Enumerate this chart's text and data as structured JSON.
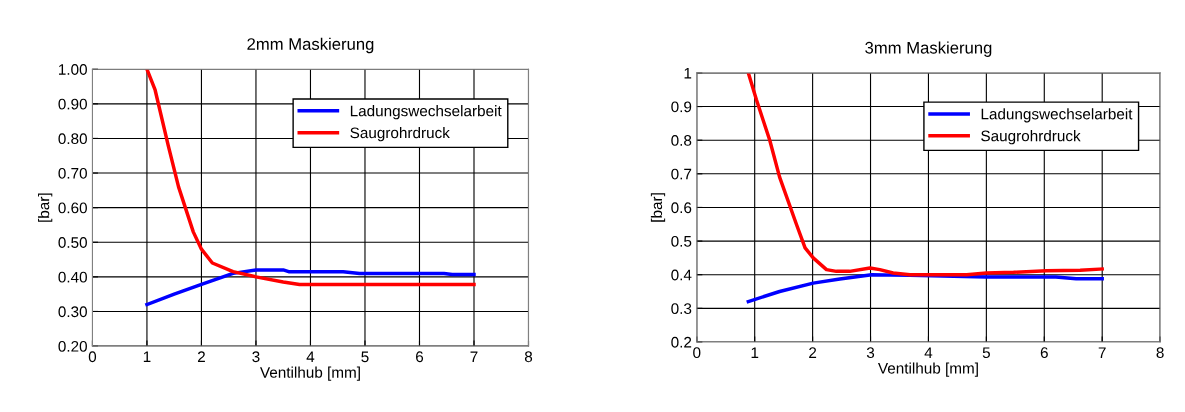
{
  "chart_data": [
    {
      "type": "line",
      "title": "2mm Maskierung",
      "xlabel": "Ventilhub [mm]",
      "ylabel": "[bar]",
      "xlim": [
        0,
        8
      ],
      "xticks": [
        0,
        1,
        2,
        3,
        4,
        5,
        6,
        7,
        8
      ],
      "ylim": [
        0.2,
        1.0
      ],
      "yticks": [
        {
          "value": 0.2,
          "label": "0.20"
        },
        {
          "value": 0.3,
          "label": "0.30"
        },
        {
          "value": 0.4,
          "label": "0.40"
        },
        {
          "value": 0.5,
          "label": "0.50"
        },
        {
          "value": 0.6,
          "label": "0.60"
        },
        {
          "value": 0.7,
          "label": "0.70"
        },
        {
          "value": 0.8,
          "label": "0.80"
        },
        {
          "value": 0.9,
          "label": "0.90"
        },
        {
          "value": 1.0,
          "label": "1.00"
        }
      ],
      "grid": true,
      "legend": "top right",
      "marker": "none",
      "line_style": "solid",
      "series": [
        {
          "name": "Ladungswechselarbeit",
          "color": "#0000ff",
          "x": [
            1,
            1.5,
            2,
            2.58,
            3,
            3.5,
            3.6,
            4.6,
            4.9,
            6.45,
            6.6,
            7
          ],
          "values": [
            0.32,
            0.35,
            0.378,
            0.41,
            0.42,
            0.42,
            0.415,
            0.415,
            0.41,
            0.41,
            0.407,
            0.407
          ]
        },
        {
          "name": "Saugrohrdruck",
          "color": "#ff0000",
          "x": [
            1,
            1.15,
            1.39,
            1.58,
            1.85,
            2,
            2.2,
            2.58,
            3,
            3.5,
            3.8,
            7
          ],
          "values": [
            1.0,
            0.94,
            0.78,
            0.66,
            0.53,
            0.48,
            0.44,
            0.415,
            0.4,
            0.385,
            0.378,
            0.378
          ]
        }
      ]
    },
    {
      "type": "line",
      "title": "3mm Maskierung",
      "xlabel": "Ventilhub [mm]",
      "ylabel": "[bar]",
      "xlim": [
        0,
        8
      ],
      "xticks": [
        0,
        1,
        2,
        3,
        4,
        5,
        6,
        7,
        8
      ],
      "ylim": [
        0.2,
        1.0
      ],
      "yticks": [
        0.2,
        0.3,
        0.4,
        0.5,
        0.6,
        0.7,
        0.8,
        0.9,
        1
      ],
      "grid": true,
      "legend": "top right",
      "marker": "none",
      "line_style": "solid",
      "series": [
        {
          "name": "Ladungswechselarbeit",
          "color": "#0000ff",
          "x": [
            0.89,
            1.43,
            2.01,
            2.47,
            3.02,
            3.68,
            5,
            6.2,
            6.55,
            7
          ],
          "values": [
            0.32,
            0.35,
            0.375,
            0.387,
            0.4,
            0.398,
            0.393,
            0.393,
            0.388,
            0.388
          ]
        },
        {
          "name": "Saugrohrdruck",
          "color": "#ff0000",
          "x": [
            0.89,
            1.03,
            1.26,
            1.43,
            1.72,
            1.87,
            2.01,
            2.24,
            2.41,
            2.64,
            2.99,
            3.16,
            3.39,
            3.68,
            4.66,
            5,
            5.47,
            6.04,
            6.62,
            7
          ],
          "values": [
            1.0,
            0.92,
            0.8,
            0.69,
            0.55,
            0.48,
            0.45,
            0.415,
            0.41,
            0.41,
            0.42,
            0.415,
            0.405,
            0.4,
            0.4,
            0.405,
            0.407,
            0.412,
            0.413,
            0.417
          ]
        }
      ]
    }
  ]
}
